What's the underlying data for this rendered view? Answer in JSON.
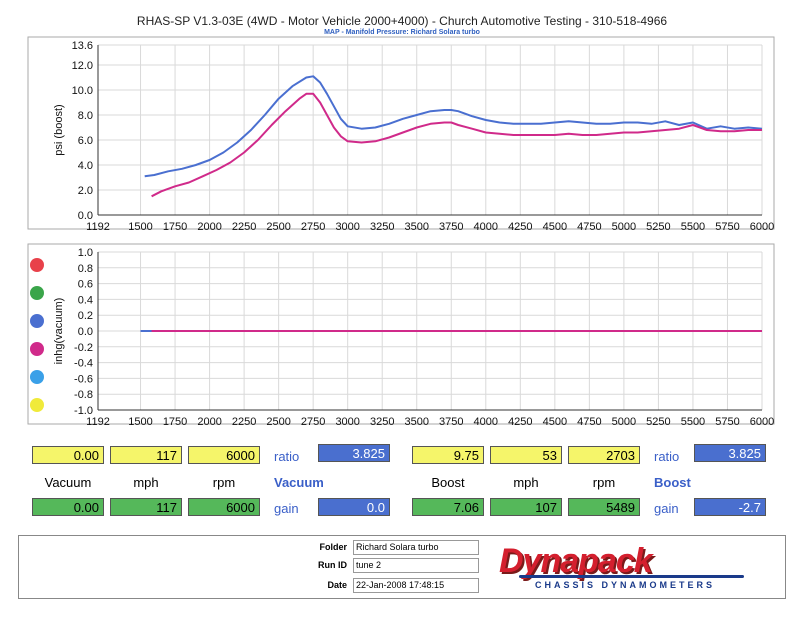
{
  "header": {
    "title": "RHAS-SP V1.3-03E  (4WD - Motor Vehicle 2000+4000) - Church Automotive Testing - 310-518-4966",
    "subtitle": "MAP - Manifold Pressure: Richard Solara turbo"
  },
  "chart_data": [
    {
      "type": "line",
      "ylabel": "psi (boost)",
      "xlim": [
        1192,
        6000
      ],
      "ylim": [
        0,
        13.6
      ],
      "x_ticks": [
        1192,
        1500,
        1750,
        2000,
        2250,
        2500,
        2750,
        3000,
        3250,
        3500,
        3750,
        4000,
        4250,
        4500,
        4750,
        5000,
        5250,
        5500,
        5750,
        6000
      ],
      "y_ticks": [
        0.0,
        2.0,
        4.0,
        6.0,
        8.0,
        10.0,
        12.0,
        13.6
      ],
      "x_tick_labels": [
        "1192",
        "1500",
        "1750",
        "2000",
        "2250",
        "2500",
        "2750",
        "3000",
        "3250",
        "3500",
        "3750",
        "4000",
        "4250",
        "4500",
        "4750",
        "5000",
        "5250",
        "5500",
        "5750",
        "6000"
      ],
      "y_tick_labels": [
        "0.0",
        "2.0",
        "4.0",
        "6.0",
        "8.0",
        "10.0",
        "12.0",
        "13.6"
      ],
      "grid": true,
      "series": [
        {
          "color": "#4a6fd0",
          "x": [
            1530,
            1600,
            1700,
            1800,
            1900,
            2000,
            2100,
            2200,
            2300,
            2400,
            2500,
            2600,
            2700,
            2750,
            2800,
            2850,
            2900,
            2950,
            3000,
            3100,
            3200,
            3300,
            3400,
            3500,
            3600,
            3700,
            3750,
            3800,
            3900,
            4000,
            4100,
            4200,
            4300,
            4400,
            4500,
            4600,
            4700,
            4800,
            4900,
            5000,
            5100,
            5200,
            5300,
            5400,
            5500,
            5600,
            5700,
            5800,
            5900,
            6000
          ],
          "y": [
            3.1,
            3.2,
            3.5,
            3.7,
            4.0,
            4.4,
            5.0,
            5.8,
            6.8,
            8.0,
            9.3,
            10.3,
            11.0,
            11.1,
            10.6,
            9.7,
            8.7,
            7.7,
            7.1,
            6.9,
            7.0,
            7.3,
            7.7,
            8.0,
            8.3,
            8.4,
            8.4,
            8.3,
            7.9,
            7.6,
            7.4,
            7.3,
            7.3,
            7.3,
            7.4,
            7.5,
            7.4,
            7.3,
            7.3,
            7.4,
            7.4,
            7.3,
            7.5,
            7.2,
            7.4,
            6.9,
            7.1,
            6.9,
            7.0,
            6.9
          ]
        },
        {
          "color": "#d02a8a",
          "x": [
            1580,
            1650,
            1750,
            1850,
            1950,
            2050,
            2150,
            2250,
            2350,
            2450,
            2550,
            2650,
            2700,
            2750,
            2800,
            2850,
            2900,
            2950,
            3000,
            3100,
            3200,
            3300,
            3400,
            3500,
            3600,
            3700,
            3750,
            3800,
            3900,
            4000,
            4100,
            4200,
            4300,
            4400,
            4500,
            4600,
            4700,
            4800,
            4900,
            5000,
            5100,
            5200,
            5300,
            5400,
            5500,
            5600,
            5700,
            5800,
            5900,
            6000
          ],
          "y": [
            1.5,
            1.9,
            2.3,
            2.6,
            3.1,
            3.6,
            4.2,
            5.0,
            6.0,
            7.2,
            8.3,
            9.3,
            9.7,
            9.7,
            9.0,
            8.0,
            7.0,
            6.3,
            5.9,
            5.8,
            5.9,
            6.2,
            6.6,
            7.0,
            7.3,
            7.4,
            7.4,
            7.2,
            6.9,
            6.6,
            6.5,
            6.4,
            6.4,
            6.4,
            6.4,
            6.5,
            6.4,
            6.4,
            6.5,
            6.6,
            6.6,
            6.7,
            6.8,
            6.9,
            7.2,
            6.8,
            6.7,
            6.7,
            6.8,
            6.8
          ]
        }
      ]
    },
    {
      "type": "line",
      "ylabel": "inhg(vacuum)",
      "xlim": [
        1192,
        6000
      ],
      "ylim": [
        -1.0,
        1.0
      ],
      "x_ticks": [
        1192,
        1500,
        1750,
        2000,
        2250,
        2500,
        2750,
        3000,
        3250,
        3500,
        3750,
        4000,
        4250,
        4500,
        4750,
        5000,
        5250,
        5500,
        5750,
        6000
      ],
      "y_ticks": [
        -1.0,
        -0.8,
        -0.6,
        -0.4,
        -0.2,
        0.0,
        0.2,
        0.4,
        0.6,
        0.8,
        1.0
      ],
      "x_tick_labels": [
        "1192",
        "1500",
        "1750",
        "2000",
        "2250",
        "2500",
        "2750",
        "3000",
        "3250",
        "3500",
        "3750",
        "4000",
        "4250",
        "4500",
        "4750",
        "5000",
        "5250",
        "5500",
        "5750",
        "6000"
      ],
      "y_tick_labels": [
        "-1.0",
        "-0.8",
        "-0.6",
        "-0.4",
        "-0.2",
        "0.0",
        "0.2",
        "0.4",
        "0.6",
        "0.8",
        "1.0"
      ],
      "grid": true,
      "series": [
        {
          "color": "#4a6fd0",
          "x": [
            1500,
            6000
          ],
          "y": [
            0.0,
            0.0
          ]
        },
        {
          "color": "#d02a8a",
          "x": [
            1580,
            6000
          ],
          "y": [
            0.0,
            0.0
          ]
        }
      ]
    }
  ],
  "legend_dots": [
    "#e8414a",
    "#3aa54a",
    "#4a6fd0",
    "#d02a8a",
    "#3aa0e8",
    "#f0ea3a"
  ],
  "readouts": {
    "row1_left": [
      "0.00",
      "117",
      "6000"
    ],
    "row1_left_ratio_label": "ratio",
    "row1_left_ratio": "3.825",
    "row1_right": [
      "9.75",
      "53",
      "2703"
    ],
    "row1_right_ratio_label": "ratio",
    "row1_right_ratio": "3.825",
    "labels_left": [
      "Vacuum",
      "mph",
      "rpm"
    ],
    "labels_left_title": "Vacuum",
    "labels_right": [
      "Boost",
      "mph",
      "rpm"
    ],
    "labels_right_title": "Boost",
    "row2_left": [
      "0.00",
      "117",
      "6000"
    ],
    "row2_left_gain_label": "gain",
    "row2_left_gain": "0.0",
    "row2_right": [
      "7.06",
      "107",
      "5489"
    ],
    "row2_right_gain_label": "gain",
    "row2_right_gain": "-2.7"
  },
  "footer": {
    "folder_label": "Folder",
    "folder": "Richard Solara turbo",
    "runid_label": "Run ID",
    "runid": "tune 2",
    "date_label": "Date",
    "date": "22-Jan-2008   17:48:15",
    "logo": "Dynapack",
    "logo_sub": "CHASSIS DYNAMOMETERS"
  }
}
